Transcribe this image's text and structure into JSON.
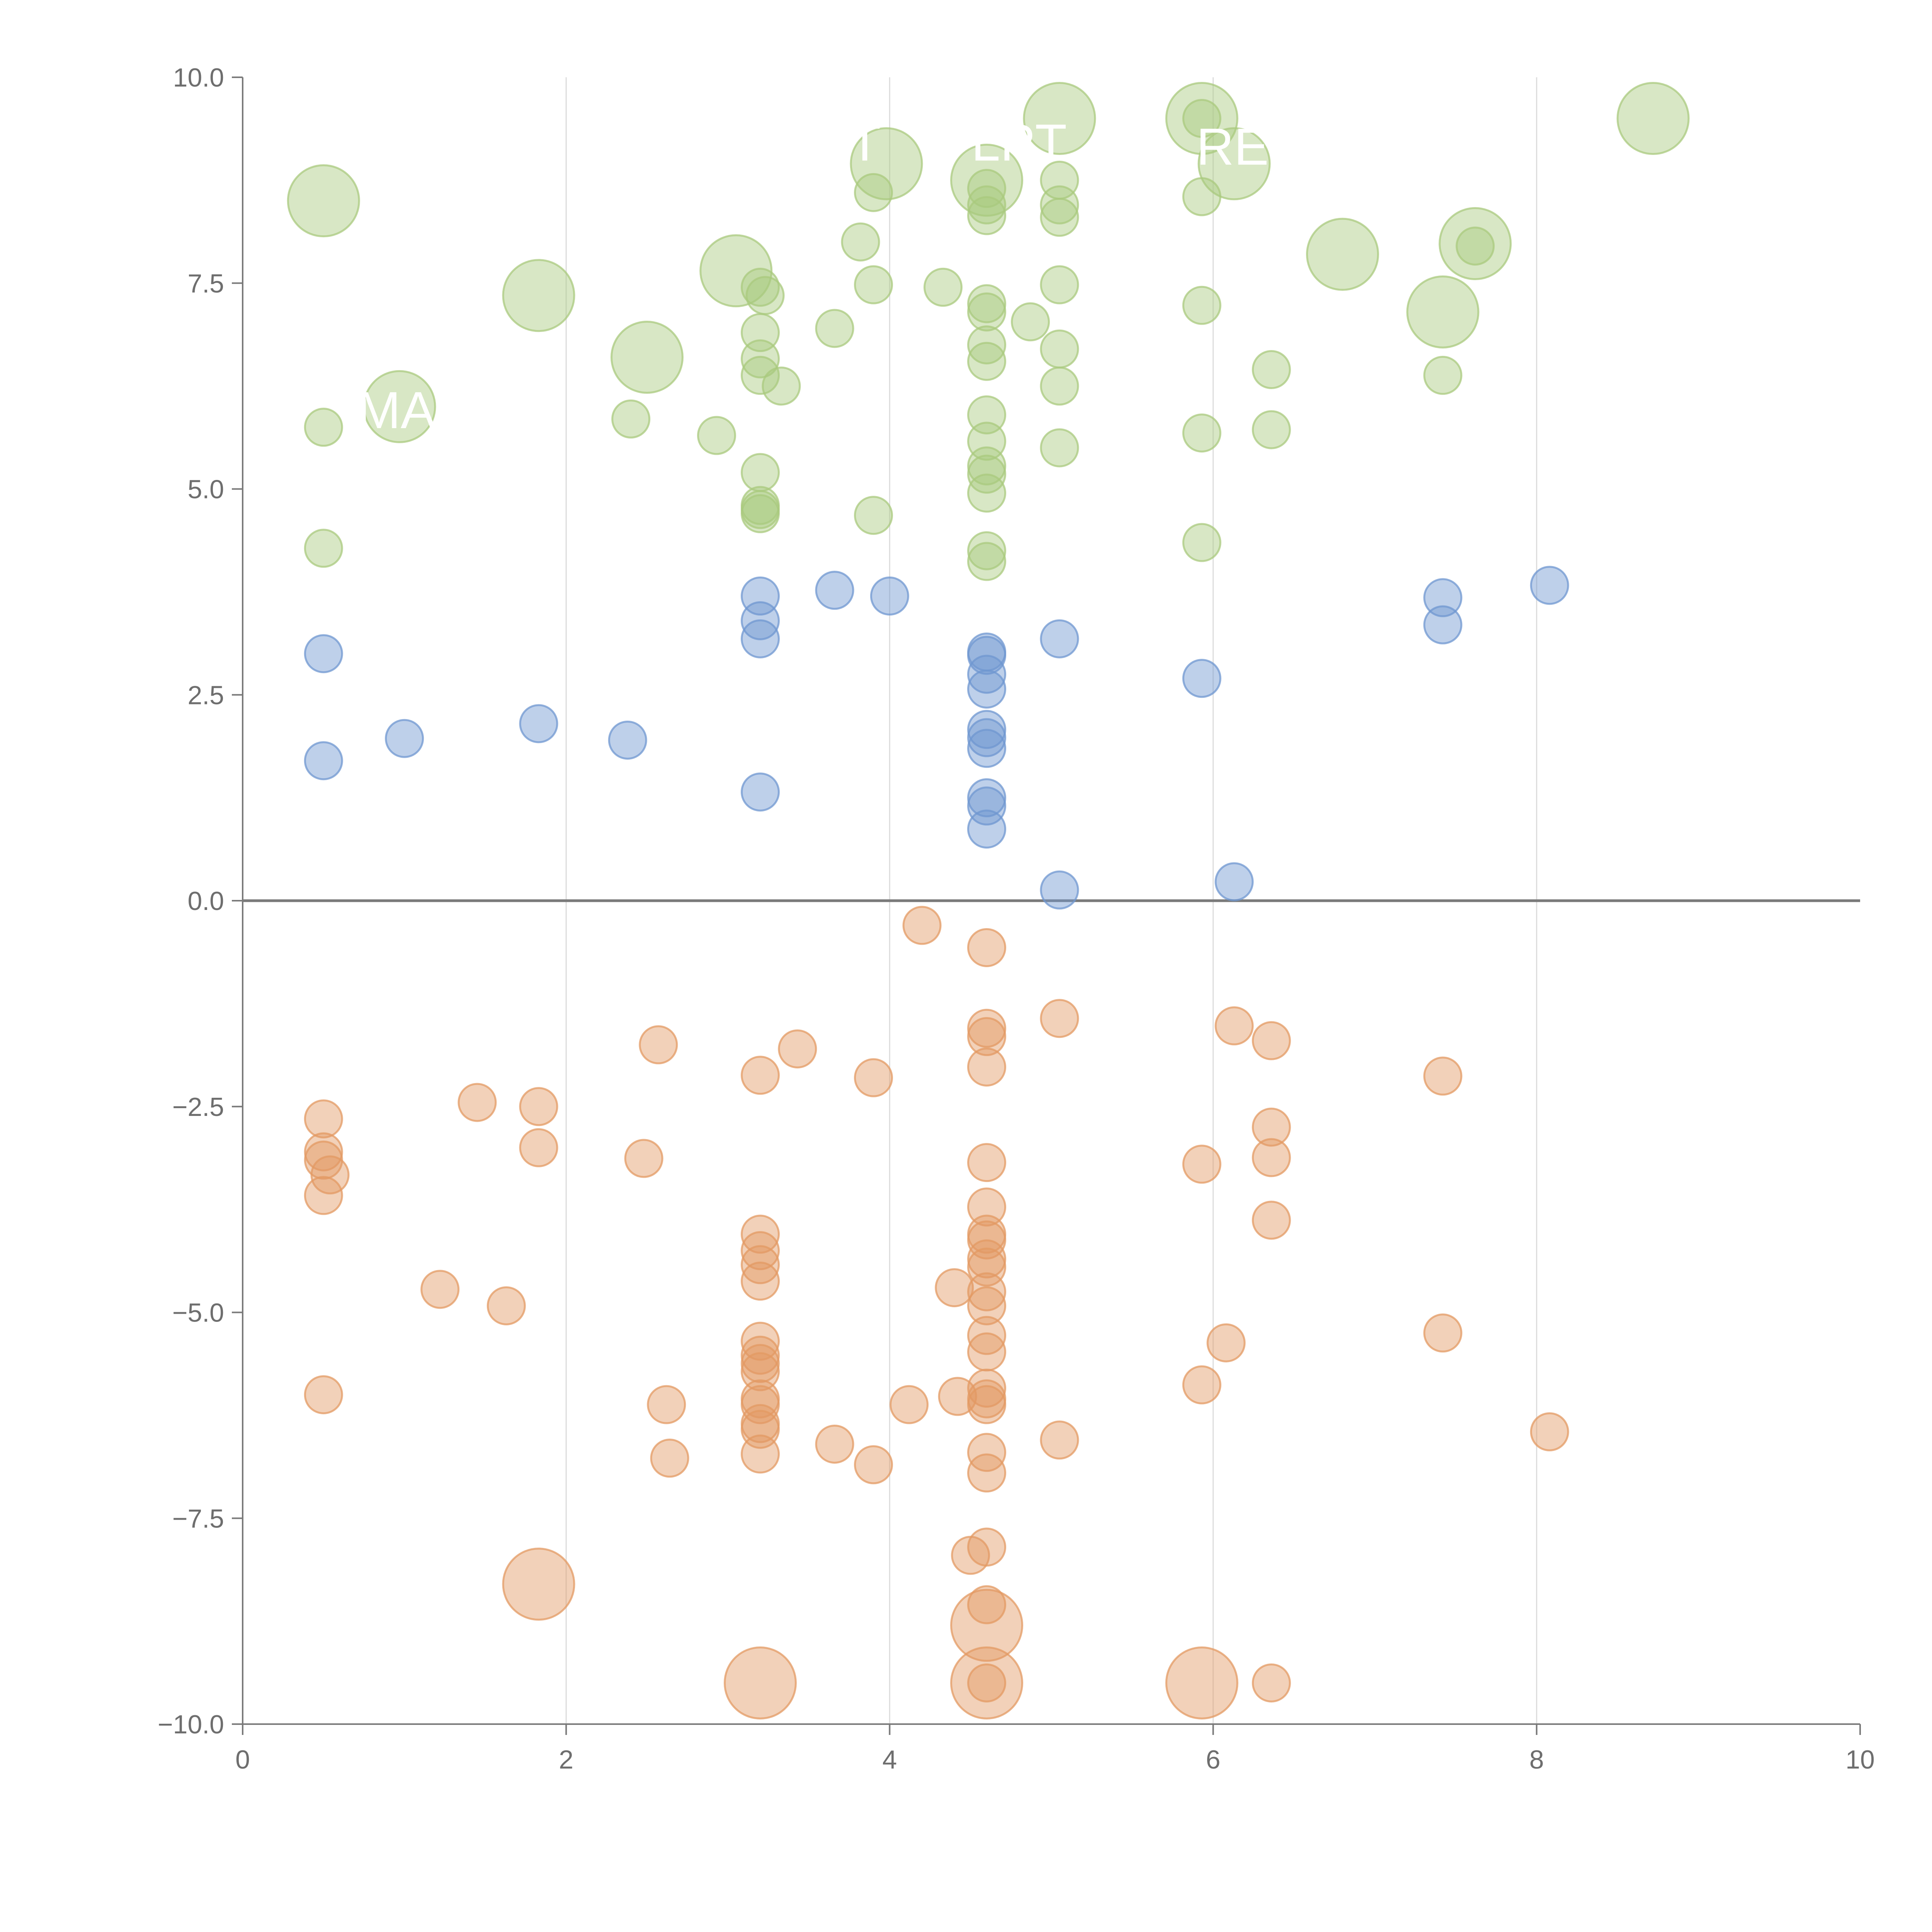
{
  "chart_data": {
    "type": "scatter",
    "title": "",
    "xlabel": "",
    "ylabel": "",
    "xlim": [
      0,
      10
    ],
    "ylim": [
      -10,
      10
    ],
    "grid": "vertical",
    "x_ticks": [
      0,
      2,
      4,
      6,
      8,
      10
    ],
    "x_tick_labels": [
      "0",
      "2",
      "4",
      "6",
      "8",
      "10"
    ],
    "y_ticks": [
      10,
      7.5,
      5,
      2.5,
      0,
      -2.5,
      -5,
      -7.5,
      -10
    ],
    "y_tick_labels": [
      "10.0",
      "7.5",
      "5.0",
      "2.5",
      "0.0",
      "−2.5",
      "−5.0",
      "−7.5",
      "−10.0"
    ],
    "colors": {
      "green": "#a9c97e",
      "blue": "#6f97d0",
      "orange": "#e39a63"
    },
    "series": [
      {
        "name": "green",
        "color": "#a9c97e",
        "points": [
          [
            0.5,
            8.5,
            2
          ],
          [
            0.97,
            6.0,
            2
          ],
          [
            1.83,
            7.35,
            2
          ],
          [
            2.5,
            6.6,
            2
          ],
          [
            3.05,
            7.65,
            2
          ],
          [
            3.98,
            8.95,
            2
          ],
          [
            4.6,
            8.75,
            2
          ],
          [
            5.05,
            9.5,
            2
          ],
          [
            5.93,
            9.5,
            2
          ],
          [
            6.13,
            8.95,
            2
          ],
          [
            6.8,
            7.85,
            2
          ],
          [
            7.42,
            7.15,
            2
          ],
          [
            7.62,
            7.98,
            2
          ],
          [
            8.72,
            9.5,
            2
          ],
          [
            0.5,
            5.75,
            1
          ],
          [
            0.5,
            4.28,
            1
          ],
          [
            2.4,
            5.85,
            1
          ],
          [
            2.93,
            5.65,
            1
          ],
          [
            3.2,
            7.45,
            1
          ],
          [
            3.23,
            7.35,
            1
          ],
          [
            3.2,
            6.9,
            1
          ],
          [
            3.2,
            6.58,
            1
          ],
          [
            3.2,
            6.38,
            1
          ],
          [
            3.33,
            6.25,
            1
          ],
          [
            3.2,
            5.2,
            1
          ],
          [
            3.2,
            4.8,
            1
          ],
          [
            3.2,
            4.7,
            1
          ],
          [
            3.2,
            4.75,
            1
          ],
          [
            3.66,
            6.95,
            1
          ],
          [
            3.82,
            8.0,
            1
          ],
          [
            3.9,
            8.6,
            1
          ],
          [
            3.9,
            7.48,
            1
          ],
          [
            3.9,
            4.68,
            1
          ],
          [
            4.33,
            7.45,
            1
          ],
          [
            4.6,
            8.65,
            1
          ],
          [
            4.6,
            8.45,
            1
          ],
          [
            4.6,
            8.32,
            1
          ],
          [
            4.6,
            7.25,
            1
          ],
          [
            4.6,
            7.15,
            1
          ],
          [
            4.6,
            6.75,
            1
          ],
          [
            4.6,
            6.55,
            1
          ],
          [
            4.6,
            5.9,
            1
          ],
          [
            4.6,
            5.58,
            1
          ],
          [
            4.6,
            5.28,
            1
          ],
          [
            4.6,
            5.18,
            1
          ],
          [
            4.6,
            4.95,
            1
          ],
          [
            4.6,
            4.25,
            1
          ],
          [
            4.6,
            4.12,
            1
          ],
          [
            4.87,
            7.03,
            1
          ],
          [
            5.05,
            8.75,
            1
          ],
          [
            5.05,
            8.45,
            1
          ],
          [
            5.05,
            8.3,
            1
          ],
          [
            5.05,
            7.48,
            1
          ],
          [
            5.05,
            6.7,
            1
          ],
          [
            5.05,
            6.25,
            1
          ],
          [
            5.05,
            5.5,
            1
          ],
          [
            5.93,
            9.5,
            1
          ],
          [
            5.93,
            8.55,
            1
          ],
          [
            5.93,
            7.23,
            1
          ],
          [
            5.93,
            5.68,
            1
          ],
          [
            5.93,
            4.35,
            1
          ],
          [
            6.36,
            6.45,
            1
          ],
          [
            6.36,
            5.72,
            1
          ],
          [
            7.42,
            6.38,
            1
          ],
          [
            7.62,
            7.95,
            1
          ]
        ]
      },
      {
        "name": "blue",
        "color": "#6f97d0",
        "points": [
          [
            0.5,
            3.0,
            1
          ],
          [
            0.5,
            1.7,
            1
          ],
          [
            1.0,
            1.97,
            1
          ],
          [
            1.83,
            2.15,
            1
          ],
          [
            2.38,
            1.95,
            1
          ],
          [
            3.2,
            3.7,
            1
          ],
          [
            3.2,
            3.4,
            1
          ],
          [
            3.2,
            3.18,
            1
          ],
          [
            3.2,
            1.32,
            1
          ],
          [
            3.66,
            3.77,
            1
          ],
          [
            4.0,
            3.7,
            1
          ],
          [
            4.6,
            3.02,
            1
          ],
          [
            4.6,
            2.98,
            1
          ],
          [
            4.6,
            2.75,
            1
          ],
          [
            4.6,
            2.57,
            1
          ],
          [
            4.6,
            2.08,
            1
          ],
          [
            4.6,
            1.98,
            1
          ],
          [
            4.6,
            1.85,
            1
          ],
          [
            4.6,
            1.25,
            1
          ],
          [
            4.6,
            1.15,
            1
          ],
          [
            4.6,
            0.87,
            1
          ],
          [
            5.05,
            3.18,
            1
          ],
          [
            5.05,
            0.13,
            1
          ],
          [
            5.93,
            2.7,
            1
          ],
          [
            6.13,
            0.23,
            1
          ],
          [
            7.42,
            3.68,
            1
          ],
          [
            7.42,
            3.35,
            1
          ],
          [
            8.08,
            3.83,
            1
          ]
        ]
      },
      {
        "name": "orange",
        "color": "#e39a63",
        "points": [
          [
            1.83,
            -8.3,
            2
          ],
          [
            3.2,
            -9.5,
            2
          ],
          [
            4.6,
            -8.8,
            2
          ],
          [
            4.6,
            -9.5,
            2
          ],
          [
            5.93,
            -9.5,
            2
          ],
          [
            0.5,
            -2.65,
            1
          ],
          [
            0.5,
            -3.05,
            1
          ],
          [
            0.5,
            -3.15,
            1
          ],
          [
            0.54,
            -3.33,
            1
          ],
          [
            0.5,
            -3.58,
            1
          ],
          [
            0.5,
            -6.0,
            1
          ],
          [
            1.22,
            -4.72,
            1
          ],
          [
            1.45,
            -2.45,
            1
          ],
          [
            1.63,
            -4.92,
            1
          ],
          [
            1.83,
            -2.5,
            1
          ],
          [
            1.83,
            -3.0,
            1
          ],
          [
            2.48,
            -3.13,
            1
          ],
          [
            2.57,
            -1.75,
            1
          ],
          [
            2.62,
            -6.12,
            1
          ],
          [
            2.64,
            -6.77,
            1
          ],
          [
            3.2,
            -2.12,
            1
          ],
          [
            3.2,
            -4.05,
            1
          ],
          [
            3.2,
            -4.25,
            1
          ],
          [
            3.2,
            -4.42,
            1
          ],
          [
            3.2,
            -4.62,
            1
          ],
          [
            3.2,
            -5.35,
            1
          ],
          [
            3.2,
            -5.52,
            1
          ],
          [
            3.2,
            -5.62,
            1
          ],
          [
            3.2,
            -5.72,
            1
          ],
          [
            3.2,
            -6.05,
            1
          ],
          [
            3.2,
            -6.12,
            1
          ],
          [
            3.2,
            -6.35,
            1
          ],
          [
            3.2,
            -6.42,
            1
          ],
          [
            3.2,
            -6.72,
            1
          ],
          [
            3.43,
            -1.8,
            1
          ],
          [
            3.66,
            -6.6,
            1
          ],
          [
            3.9,
            -2.15,
            1
          ],
          [
            3.9,
            -6.85,
            1
          ],
          [
            4.12,
            -6.12,
            1
          ],
          [
            4.2,
            -0.3,
            1
          ],
          [
            4.4,
            -4.7,
            1
          ],
          [
            4.42,
            -6.02,
            1
          ],
          [
            4.5,
            -7.95,
            1
          ],
          [
            4.6,
            -0.57,
            1
          ],
          [
            4.6,
            -1.55,
            1
          ],
          [
            4.6,
            -1.65,
            1
          ],
          [
            4.6,
            -2.02,
            1
          ],
          [
            4.6,
            -3.18,
            1
          ],
          [
            4.6,
            -3.72,
            1
          ],
          [
            4.6,
            -4.05,
            1
          ],
          [
            4.6,
            -4.12,
            1
          ],
          [
            4.6,
            -4.35,
            1
          ],
          [
            4.6,
            -4.45,
            1
          ],
          [
            4.6,
            -4.75,
            1
          ],
          [
            4.6,
            -4.92,
            1
          ],
          [
            4.6,
            -5.28,
            1
          ],
          [
            4.6,
            -5.48,
            1
          ],
          [
            4.6,
            -5.92,
            1
          ],
          [
            4.6,
            -6.05,
            1
          ],
          [
            4.6,
            -6.12,
            1
          ],
          [
            4.6,
            -6.7,
            1
          ],
          [
            4.6,
            -6.95,
            1
          ],
          [
            4.6,
            -7.85,
            1
          ],
          [
            4.6,
            -8.55,
            1
          ],
          [
            4.6,
            -9.5,
            1
          ],
          [
            5.05,
            -1.43,
            1
          ],
          [
            5.05,
            -6.55,
            1
          ],
          [
            5.93,
            -3.2,
            1
          ],
          [
            5.93,
            -5.88,
            1
          ],
          [
            6.08,
            -5.37,
            1
          ],
          [
            6.13,
            -1.52,
            1
          ],
          [
            6.36,
            -1.7,
            1
          ],
          [
            6.36,
            -2.75,
            1
          ],
          [
            6.36,
            -3.12,
            1
          ],
          [
            6.36,
            -3.88,
            1
          ],
          [
            6.36,
            -9.5,
            1
          ],
          [
            7.42,
            -2.13,
            1
          ],
          [
            7.42,
            -5.25,
            1
          ],
          [
            8.08,
            -6.45,
            1
          ]
        ]
      }
    ],
    "annotations": [
      {
        "text": "MA",
        "x": 0.95,
        "y": 5.95
      },
      {
        "text": "UT",
        "x": 3.73,
        "y": 9.2
      },
      {
        "text": "LPT",
        "x": 4.8,
        "y": 9.2
      },
      {
        "text": "RE",
        "x": 6.12,
        "y": 9.15
      }
    ]
  }
}
